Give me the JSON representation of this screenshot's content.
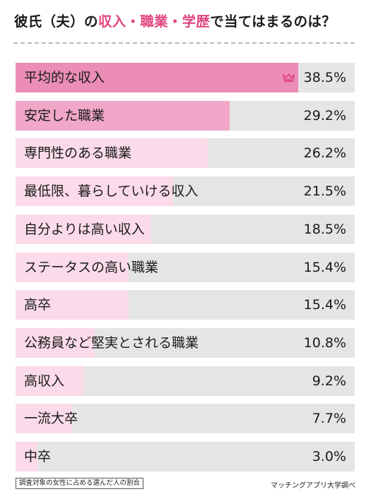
{
  "title": {
    "part1": "彼氏（夫）の",
    "highlight": "収入・職業・学歴",
    "part2": "で当てはまるのは？"
  },
  "chart_data": {
    "type": "bar",
    "orientation": "horizontal",
    "categories": [
      "平均的な収入",
      "安定した職業",
      "専門性のある職業",
      "最低限、暮らしていける収入",
      "自分よりは高い収入",
      "ステータスの高い職業",
      "高卒",
      "公務員など堅実とされる職業",
      "高収入",
      "一流大卒",
      "中卒"
    ],
    "values": [
      38.5,
      29.2,
      26.2,
      21.5,
      18.5,
      15.4,
      15.4,
      10.8,
      9.2,
      7.7,
      3.0
    ],
    "value_labels": [
      "38.5%",
      "29.2%",
      "26.2%",
      "21.5%",
      "18.5%",
      "15.4%",
      "15.4%",
      "10.8%",
      "9.2%",
      "7.7%",
      "3.0%"
    ],
    "xlim": [
      0,
      46.2
    ],
    "top_marker_icon": "crown-icon",
    "colors": {
      "rank1": "#eb8db6",
      "rank2": "#f0a7c8",
      "rest": "#fbdbe9",
      "track": "#e5e5e5",
      "accent": "#e0457f"
    }
  },
  "footer": {
    "note": "調査対象の女性に占める選んだ人の割合",
    "source": "マッチングアプリ大学調べ"
  }
}
